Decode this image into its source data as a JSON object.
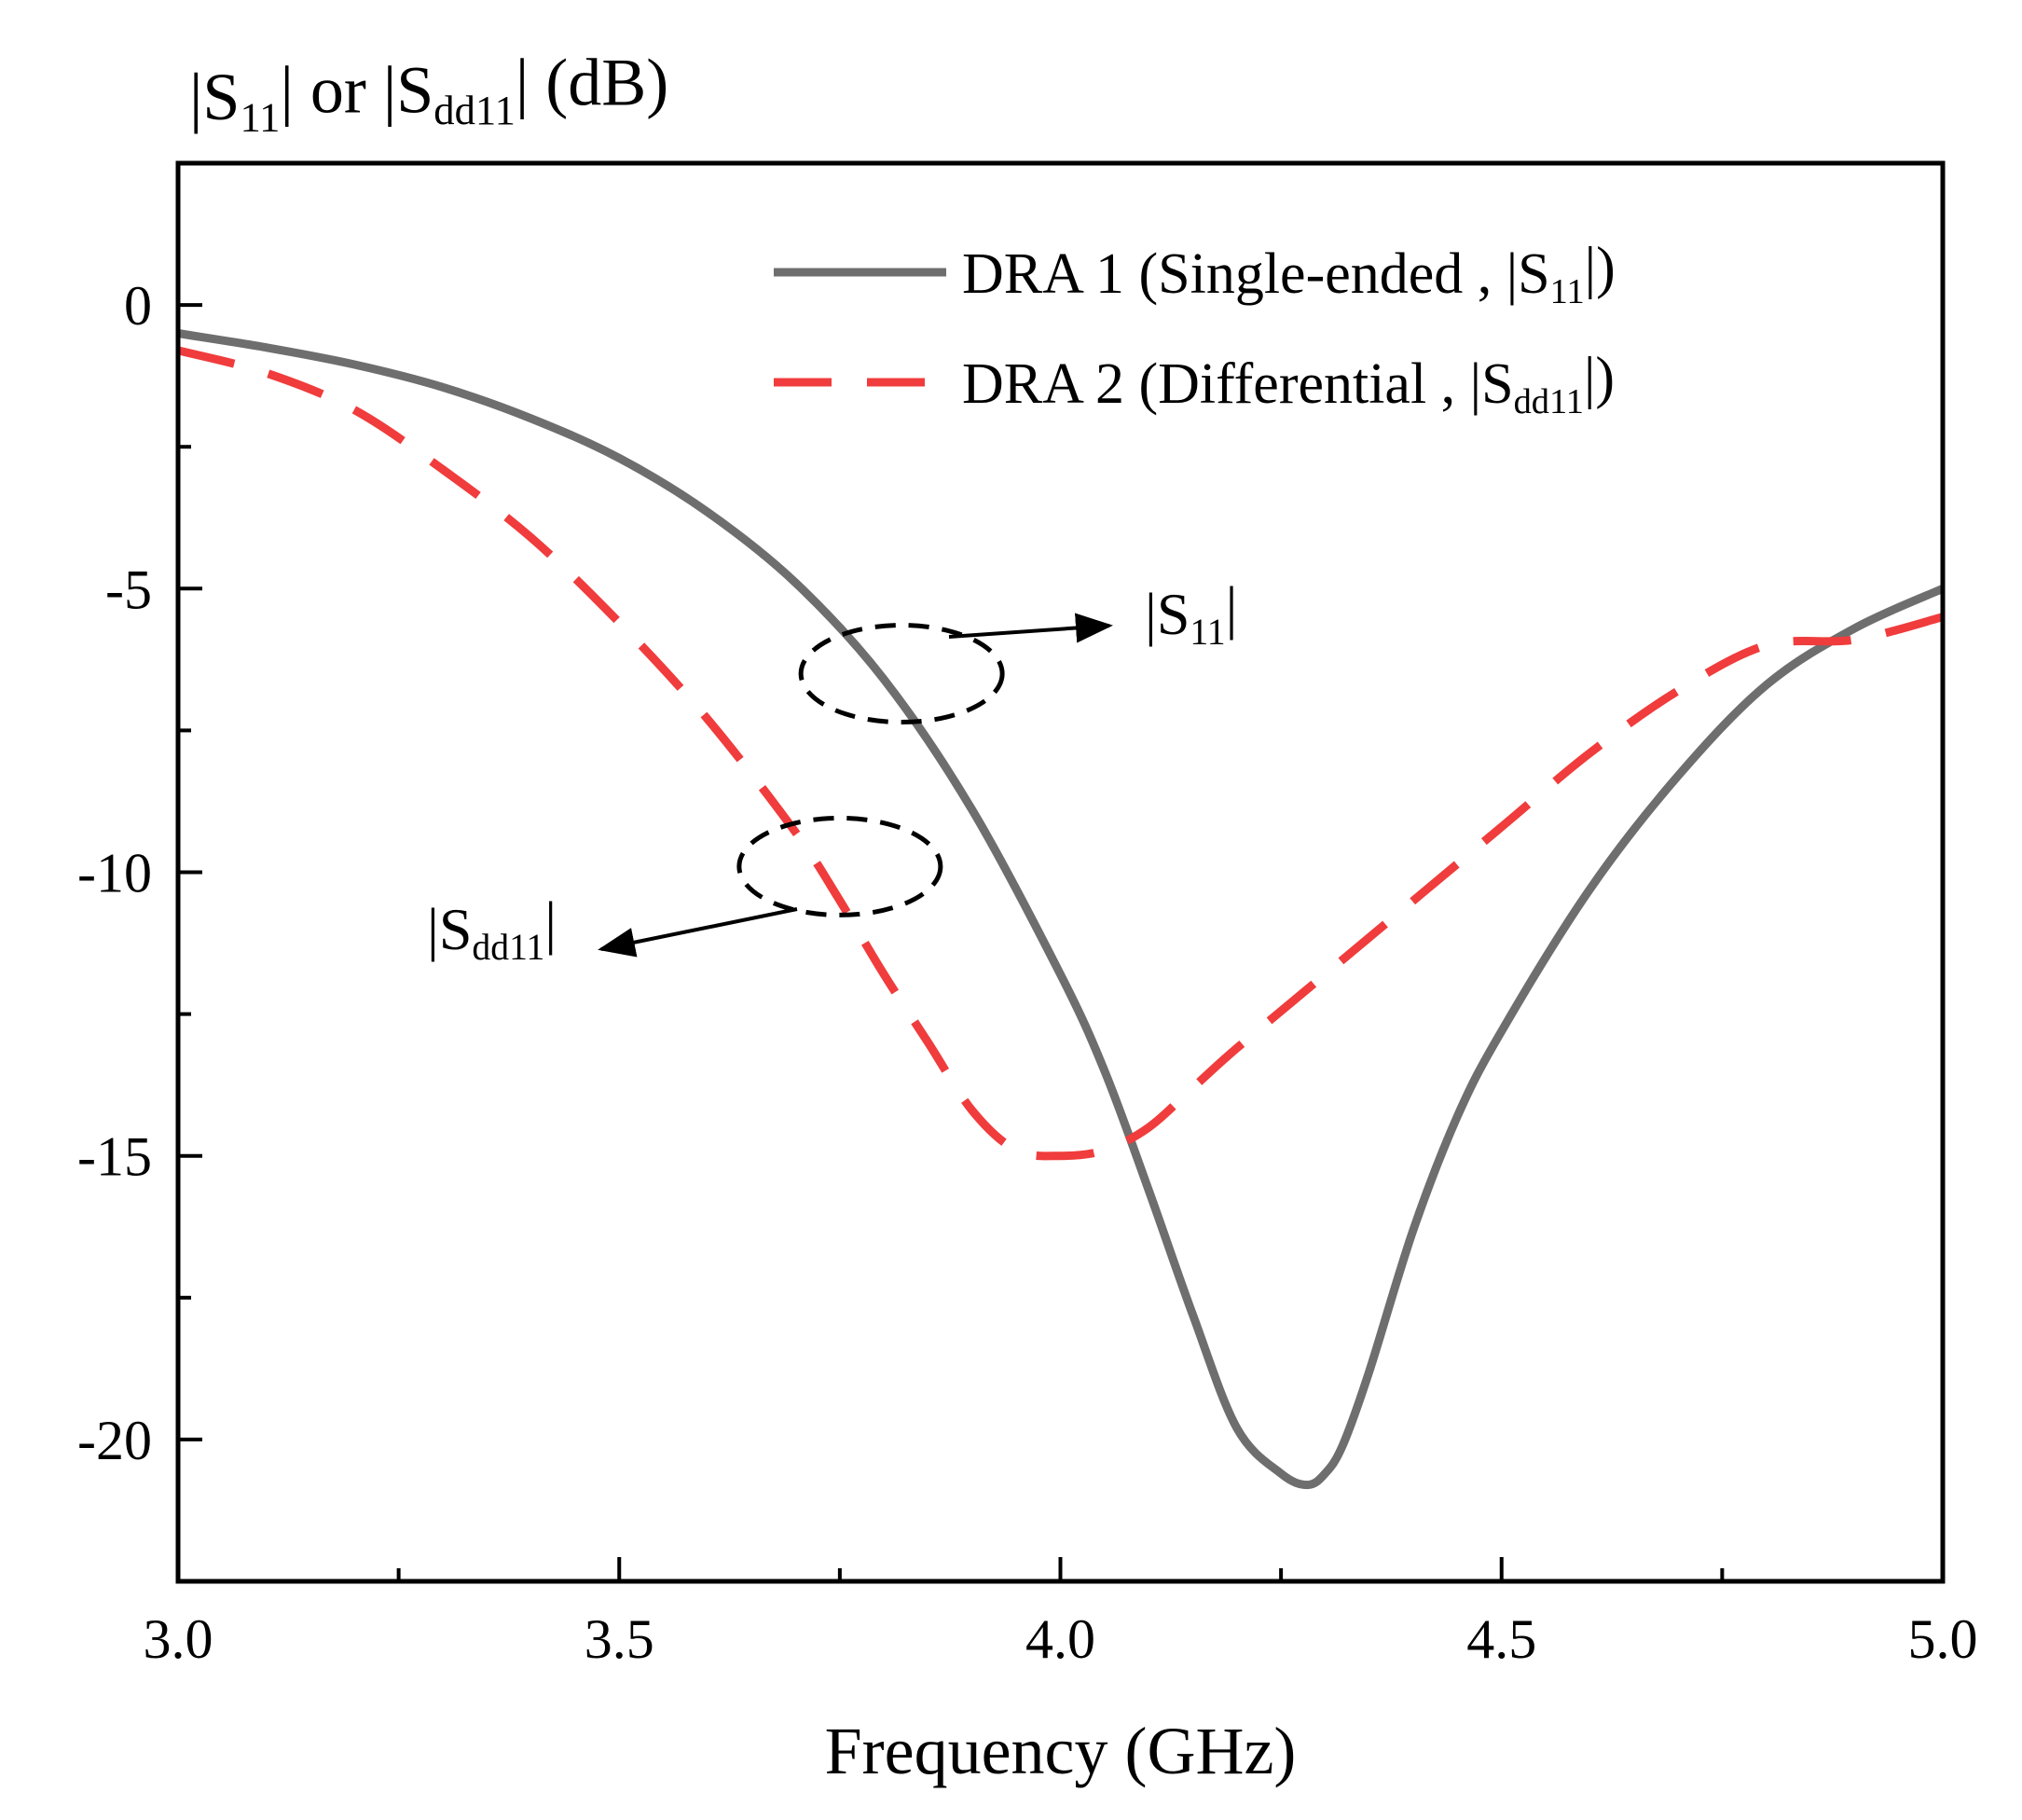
{
  "chart_data": {
    "type": "line",
    "xlabel": "Frequency (GHz)",
    "ylabel": {
      "parts": [
        {
          "text": "|S",
          "sub": false
        },
        {
          "text": "11",
          "sub": true
        },
        {
          "text": "| or |S",
          "sub": false
        },
        {
          "text": "dd11",
          "sub": true
        },
        {
          "text": "| (dB)",
          "sub": false
        }
      ]
    },
    "xlim": [
      3.0,
      5.0
    ],
    "ylim": [
      -22.5,
      2.5
    ],
    "xticks": [
      3.0,
      3.5,
      4.0,
      4.5,
      5.0
    ],
    "xtick_labels": [
      "3.0",
      "3.5",
      "4.0",
      "4.5",
      "5.0"
    ],
    "xminor": [
      3.25,
      3.75,
      4.25,
      4.75
    ],
    "yticks": [
      0,
      -5,
      -10,
      -15,
      -20
    ],
    "ytick_labels": [
      "0",
      "-5",
      "-10",
      "-15",
      "-20"
    ],
    "yminor": [
      -2.5,
      -7.5,
      -12.5,
      -17.5
    ],
    "grid": false,
    "legend_position": "top-right",
    "series": [
      {
        "name_parts": [
          {
            "text": "DRA 1 (Single-ended , |S",
            "sub": false
          },
          {
            "text": "11",
            "sub": true
          },
          {
            "text": "|)",
            "sub": false
          }
        ],
        "color": "#6e6e6e",
        "style": "solid",
        "x": [
          3.0,
          3.1,
          3.2,
          3.3,
          3.4,
          3.5,
          3.6,
          3.7,
          3.8,
          3.9,
          4.0,
          4.05,
          4.1,
          4.15,
          4.2,
          4.25,
          4.28,
          4.3,
          4.32,
          4.35,
          4.4,
          4.45,
          4.5,
          4.6,
          4.7,
          4.8,
          4.9,
          5.0
        ],
        "y": [
          -0.5,
          -0.75,
          -1.05,
          -1.45,
          -2.0,
          -2.7,
          -3.65,
          -4.9,
          -6.6,
          -8.9,
          -11.8,
          -13.5,
          -15.6,
          -17.8,
          -19.8,
          -20.6,
          -20.8,
          -20.6,
          -20.1,
          -18.8,
          -16.3,
          -14.3,
          -12.8,
          -10.3,
          -8.3,
          -6.7,
          -5.7,
          -5.0
        ]
      },
      {
        "name_parts": [
          {
            "text": "DRA 2 (Differential , |S",
            "sub": false
          },
          {
            "text": "dd11",
            "sub": true
          },
          {
            "text": "|)",
            "sub": false
          }
        ],
        "color": "#f03c3c",
        "style": "dashed",
        "x": [
          3.0,
          3.1,
          3.2,
          3.3,
          3.4,
          3.5,
          3.6,
          3.7,
          3.75,
          3.8,
          3.85,
          3.9,
          3.95,
          4.0,
          4.05,
          4.1,
          4.15,
          4.2,
          4.3,
          4.4,
          4.5,
          4.6,
          4.7,
          4.8,
          4.9,
          5.0
        ],
        "y": [
          -0.8,
          -1.2,
          -1.85,
          -2.9,
          -4.1,
          -5.6,
          -7.3,
          -9.3,
          -10.5,
          -11.8,
          -13.0,
          -14.2,
          -14.9,
          -15.0,
          -14.9,
          -14.5,
          -13.8,
          -13.1,
          -11.8,
          -10.5,
          -9.2,
          -7.9,
          -6.8,
          -6.0,
          -5.9,
          -5.5
        ]
      }
    ],
    "annotations": [
      {
        "label_parts": [
          {
            "text": "|S",
            "sub": false
          },
          {
            "text": "11",
            "sub": true
          },
          {
            "text": "|",
            "sub": false
          }
        ],
        "target_series": 0,
        "center": [
          3.82,
          -6.5
        ]
      },
      {
        "label_parts": [
          {
            "text": "|S",
            "sub": false
          },
          {
            "text": "dd11",
            "sub": true
          },
          {
            "text": "|",
            "sub": false
          }
        ],
        "target_series": 1,
        "center": [
          3.75,
          -9.9
        ]
      }
    ]
  }
}
